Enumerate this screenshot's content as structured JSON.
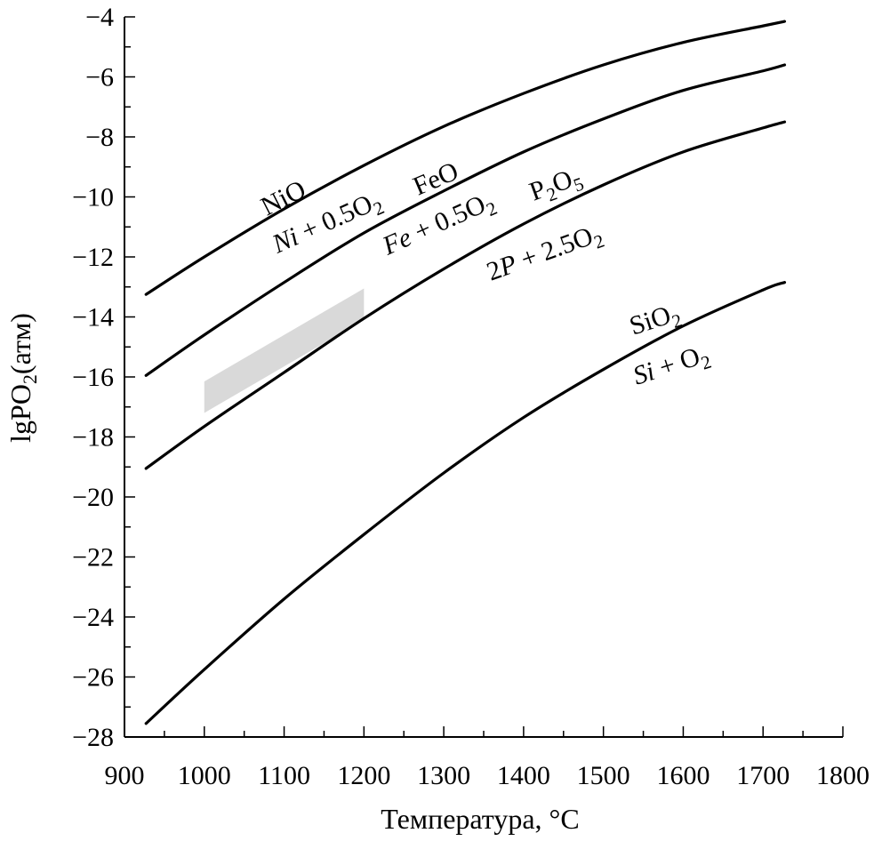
{
  "chart_data": {
    "type": "line",
    "xlabel": "Температура, °C",
    "ylabel": "lgPO",
    "ylabel_sub": "2",
    "ylabel_unit": "(атм)",
    "xlim": [
      900,
      1800
    ],
    "ylim": [
      -28,
      -4
    ],
    "x_ticks": [
      900,
      1000,
      1100,
      1200,
      1300,
      1400,
      1500,
      1600,
      1700,
      1800
    ],
    "x_tick_labels": [
      "900",
      "1000",
      "1100",
      "1200",
      "1300",
      "1400",
      "1500",
      "1600",
      "1700",
      "1800"
    ],
    "y_ticks": [
      -28,
      -26,
      -24,
      -22,
      -20,
      -18,
      -16,
      -14,
      -12,
      -10,
      -8,
      -6,
      -4
    ],
    "y_tick_labels": [
      "−28",
      "−26",
      "−24",
      "−22",
      "−20",
      "−18",
      "−16",
      "−14",
      "−12",
      "−10",
      "−8",
      "−6",
      "−4"
    ],
    "grid": false,
    "series": [
      {
        "x": [
          927,
          1000,
          1100,
          1200,
          1300,
          1400,
          1500,
          1600,
          1700,
          1727
        ],
        "y": [
          -13.25,
          -12.0,
          -10.4,
          -8.95,
          -7.65,
          -6.55,
          -5.6,
          -4.85,
          -4.3,
          -4.15
        ]
      },
      {
        "x": [
          927,
          1000,
          1100,
          1200,
          1300,
          1400,
          1500,
          1600,
          1700,
          1727
        ],
        "y": [
          -15.95,
          -14.6,
          -12.85,
          -11.2,
          -9.8,
          -8.5,
          -7.4,
          -6.45,
          -5.8,
          -5.6
        ]
      },
      {
        "x": [
          927,
          1000,
          1100,
          1200,
          1300,
          1400,
          1500,
          1600,
          1700,
          1727
        ],
        "y": [
          -19.05,
          -17.65,
          -15.85,
          -14.05,
          -12.4,
          -10.9,
          -9.6,
          -8.5,
          -7.7,
          -7.5
        ]
      },
      {
        "x": [
          927,
          1000,
          1100,
          1200,
          1300,
          1400,
          1500,
          1600,
          1700,
          1727
        ],
        "y": [
          -27.55,
          -25.75,
          -23.4,
          -21.25,
          -19.2,
          -17.35,
          -15.75,
          -14.3,
          -13.1,
          -12.85
        ]
      }
    ],
    "shaded_region": {
      "x": [
        1000,
        1000,
        1200,
        1200
      ],
      "y": [
        -17.2,
        -16.15,
        -13.05,
        -14.1
      ],
      "color": "#d9d9d9"
    },
    "annotations": {
      "nio": {
        "main": "NiO"
      },
      "ni": {
        "element": "Ni",
        "middle": " + 0.5O",
        "sub": "2"
      },
      "feo": {
        "main": "FeO"
      },
      "fe": {
        "element": "Fe",
        "middle": " + 0.5O",
        "sub": "2"
      },
      "p2o5": {
        "a": "P",
        "sub1": "2",
        "b": "O",
        "sub2": "5"
      },
      "p": {
        "coef": "2",
        "element": "P",
        "middle": " + 2.5O",
        "sub": "2"
      },
      "sio2": {
        "a": "SiO",
        "sub": "2"
      },
      "si": {
        "element": "Si",
        "middle": " + O",
        "sub": "2"
      }
    },
    "line_color": "#000000"
  }
}
